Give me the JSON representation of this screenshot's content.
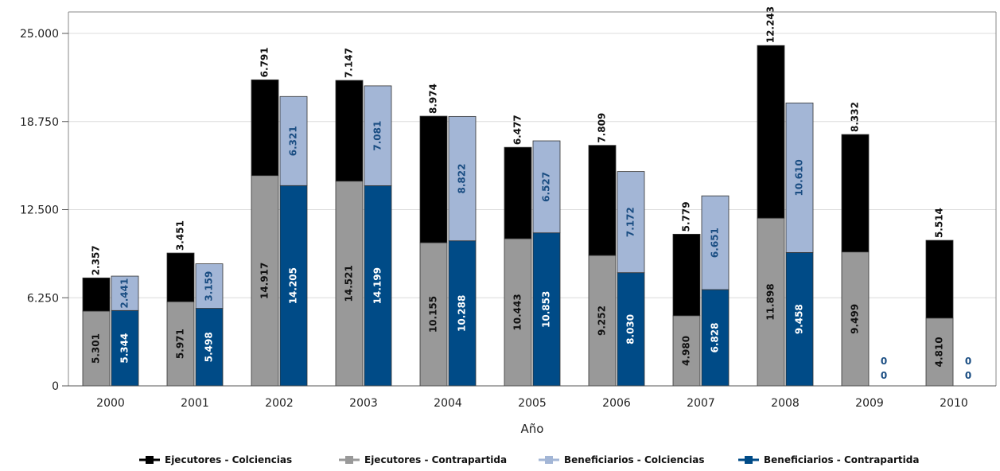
{
  "chart_data": {
    "type": "bar",
    "stacked": true,
    "grouped": true,
    "xlabel": "Año",
    "ylabel": "",
    "ylim": [
      0,
      25000
    ],
    "yticks": [
      0,
      6250,
      12500,
      18750,
      25000
    ],
    "ytick_labels": [
      "0",
      "6.250",
      "12.500",
      "18.750",
      "25.000"
    ],
    "grid": true,
    "legend_position": "bottom",
    "categories": [
      "2000",
      "2001",
      "2002",
      "2003",
      "2004",
      "2005",
      "2006",
      "2007",
      "2008",
      "2009",
      "2010"
    ],
    "series": [
      {
        "name": "Ejecutores - Colciencias",
        "stack": "Ejecutores",
        "color": "#000000",
        "label_color": "#111111",
        "values": [
          2357,
          3451,
          6791,
          7147,
          8974,
          6477,
          7809,
          5779,
          12243,
          8332,
          5514
        ],
        "labels": [
          "2.357",
          "3.451",
          "6.791",
          "7.147",
          "8.974",
          "6.477",
          "7.809",
          "5.779",
          "12.243",
          "8.332",
          "5.514"
        ]
      },
      {
        "name": "Ejecutores - Contrapartida",
        "stack": "Ejecutores",
        "color": "#999999",
        "label_color": "#111111",
        "values": [
          5301,
          5971,
          14917,
          14521,
          10155,
          10443,
          9252,
          4980,
          11898,
          9499,
          4810
        ],
        "labels": [
          "5.301",
          "5.971",
          "14.917",
          "14.521",
          "10.155",
          "10.443",
          "9.252",
          "4.980",
          "11.898",
          "9.499",
          "4.810"
        ]
      },
      {
        "name": "Beneficiarios - Colciencias",
        "stack": "Beneficiarios",
        "color": "#a3b6d6",
        "label_color": "#1a4d82",
        "values": [
          2441,
          3159,
          6321,
          7081,
          8822,
          6527,
          7172,
          6651,
          10610,
          0,
          0
        ],
        "labels": [
          "2.441",
          "3.159",
          "6.321",
          "7.081",
          "8.822",
          "6.527",
          "7.172",
          "6.651",
          "10.610",
          "0",
          "0"
        ]
      },
      {
        "name": "Beneficiarios - Contrapartida",
        "stack": "Beneficiarios",
        "color": "#004b87",
        "label_color": "#ffffff",
        "values": [
          5344,
          5498,
          14205,
          14199,
          10288,
          10853,
          8030,
          6828,
          9458,
          0,
          0
        ],
        "labels": [
          "5.344",
          "5.498",
          "14.205",
          "14.199",
          "10.288",
          "10.853",
          "8.030",
          "6.828",
          "9.458",
          "0",
          "0"
        ]
      }
    ]
  }
}
